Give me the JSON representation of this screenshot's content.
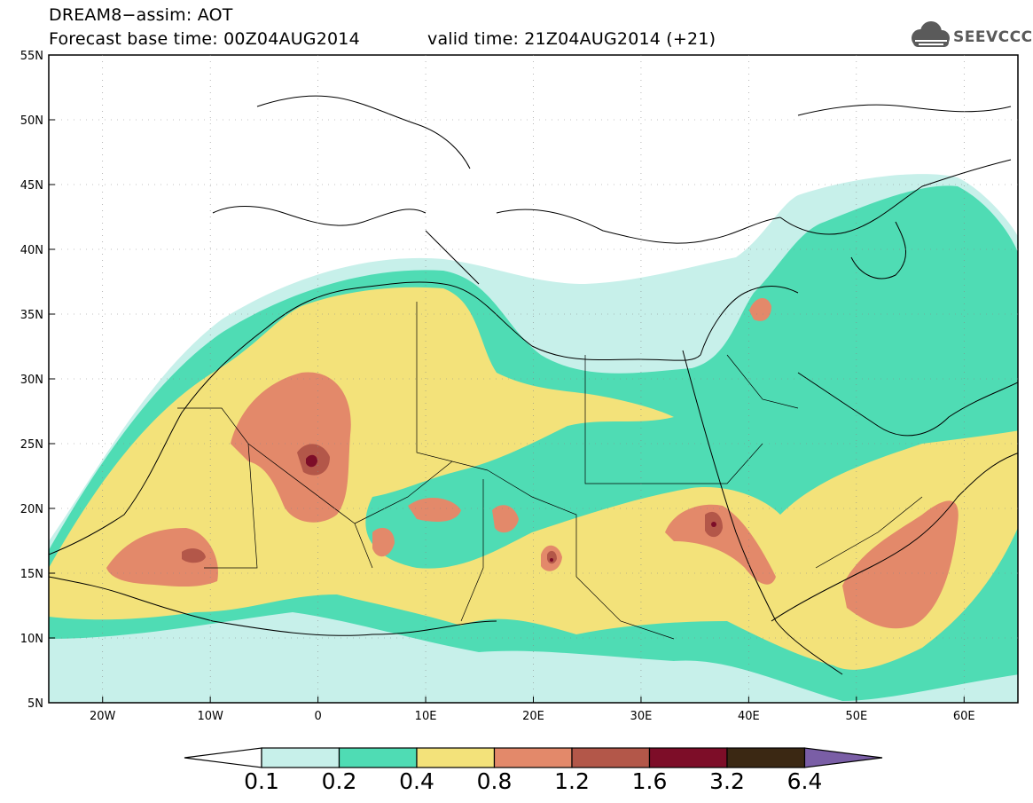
{
  "title": {
    "line1": "DREAM8−assim: AOT",
    "line2": "Forecast base time: 00Z04AUG2014",
    "line3": "valid time: 21Z04AUG2014 (+21)"
  },
  "logo": {
    "text": "SEEVCCC",
    "icon": "cloud-icon"
  },
  "map": {
    "variable": "AOT",
    "lon_range": [
      -25,
      65
    ],
    "lat_range": [
      5,
      55
    ],
    "lon_ticks": [
      "20W",
      "10W",
      "0",
      "10E",
      "20E",
      "30E",
      "40E",
      "50E",
      "60E"
    ],
    "lat_ticks": [
      "55N",
      "50N",
      "45N",
      "40N",
      "35N",
      "30N",
      "25N",
      "20N",
      "15N",
      "10N",
      "5N"
    ]
  },
  "colorbar": {
    "labels": [
      "0.1",
      "0.2",
      "0.4",
      "0.8",
      "1.2",
      "1.6",
      "3.2",
      "6.4"
    ],
    "colors": [
      "#c7f0ea",
      "#4fdcb4",
      "#f3e27a",
      "#e3896a",
      "#b35749",
      "#7d0d28",
      "#3b2813",
      "#7a5ea6"
    ]
  },
  "colors": {
    "aot_0_1": "#c7f0ea",
    "aot_0_2": "#4fdcb4",
    "aot_0_4": "#f3e27a",
    "aot_0_8": "#e3896a",
    "aot_1_2": "#b35749",
    "aot_1_6": "#7d0d28"
  }
}
